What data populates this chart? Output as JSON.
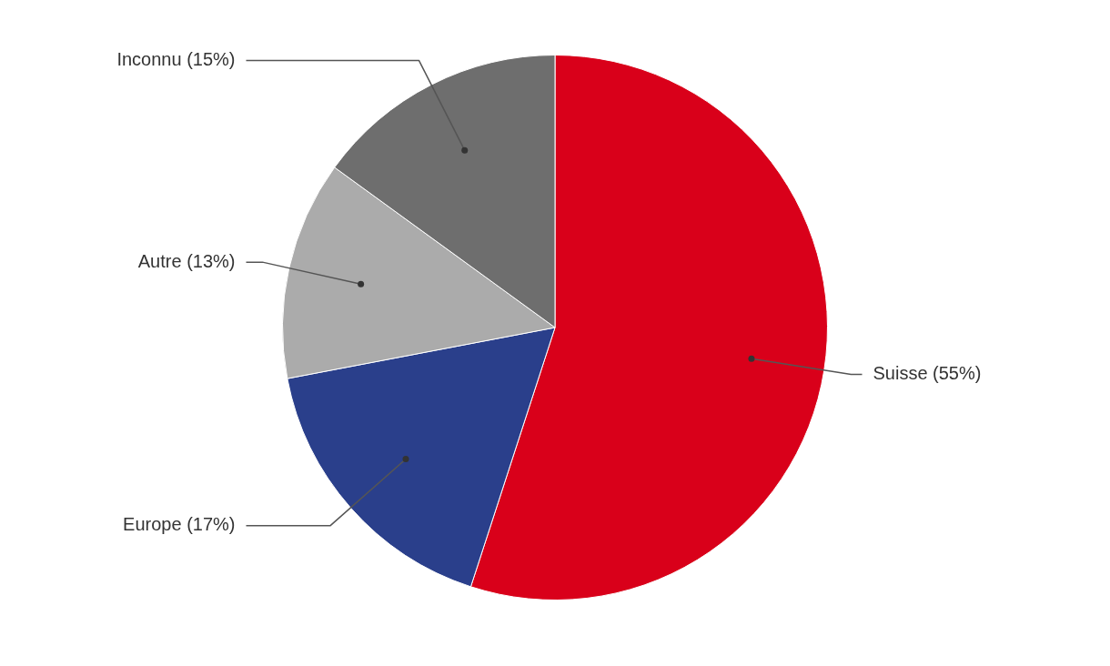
{
  "chart_data": {
    "type": "pie",
    "categories": [
      "Suisse (55%)",
      "Europe (17%)",
      "Autre (13%)",
      "Inconnu (15%)"
    ],
    "values": [
      55,
      17,
      13,
      15
    ],
    "colors": [
      "#d9001a",
      "#2a3f8b",
      "#ababab",
      "#6e6e6e"
    ],
    "legend": false
  }
}
